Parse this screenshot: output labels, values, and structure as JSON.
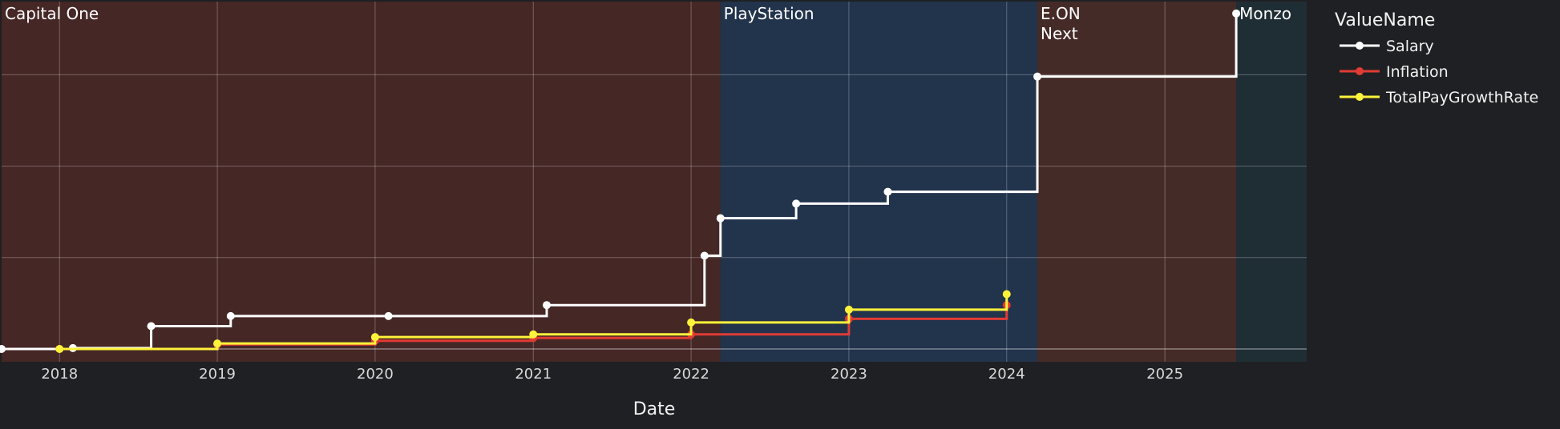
{
  "chart_data": {
    "type": "line",
    "line_shape": "step",
    "xlabel": "Date",
    "ylabel": "",
    "y_tick_labels_shown": false,
    "xlim": [
      "2017-08-20",
      "2025-11-25"
    ],
    "ylim": [
      0.86,
      4.8
    ],
    "x_ticks": [
      "2018",
      "2019",
      "2020",
      "2021",
      "2022",
      "2023",
      "2024",
      "2025"
    ],
    "grid": true,
    "legend": {
      "title": "ValueName",
      "position": "right"
    },
    "background_color": "#1f2023",
    "employers": [
      {
        "name": "Capital One",
        "start": "2017-08-20",
        "end": "2022-03-10",
        "color": "#452726"
      },
      {
        "name": "PlayStation",
        "start": "2022-03-10",
        "end": "2024-03-12",
        "color": "#22334c"
      },
      {
        "name": "E.ON\nNext",
        "start": "2024-03-12",
        "end": "2025-06-15",
        "color": "#452b28"
      },
      {
        "name": "Monzo",
        "start": "2025-06-15",
        "end": "2025-11-25",
        "color": "#1f2e34"
      }
    ],
    "series": [
      {
        "name": "Salary",
        "color": "#ffffff",
        "x": [
          "2017-08-20",
          "2018-02-01",
          "2018-08-01",
          "2019-02-01",
          "2020-02-01",
          "2021-02-01",
          "2022-02-01",
          "2022-03-10",
          "2022-09-01",
          "2023-04-01",
          "2024-03-12",
          "2025-06-15"
        ],
        "y": [
          1.0,
          1.01,
          1.25,
          1.36,
          1.36,
          1.48,
          2.02,
          2.43,
          2.59,
          2.72,
          3.98,
          4.67
        ]
      },
      {
        "name": "Inflation",
        "color": "#e03b34",
        "x": [
          "2018-01-01",
          "2019-01-01",
          "2020-01-01",
          "2021-01-01",
          "2022-01-01",
          "2023-01-01",
          "2024-01-01"
        ],
        "y": [
          1.0,
          1.05,
          1.09,
          1.12,
          1.16,
          1.33,
          1.48
        ]
      },
      {
        "name": "TotalPayGrowthRate",
        "color": "#fff23a",
        "x": [
          "2018-01-01",
          "2019-01-01",
          "2020-01-01",
          "2021-01-01",
          "2022-01-01",
          "2023-01-01",
          "2024-01-01"
        ],
        "y": [
          1.0,
          1.06,
          1.13,
          1.16,
          1.29,
          1.43,
          1.6
        ]
      }
    ]
  }
}
